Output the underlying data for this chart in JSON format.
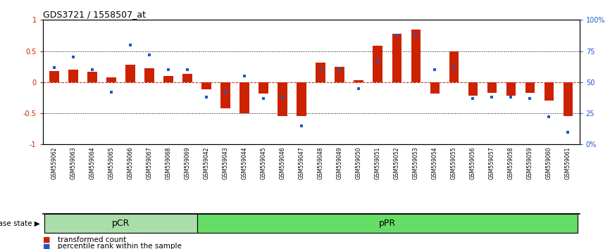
{
  "title": "GDS3721 / 1558507_at",
  "samples": [
    "GSM559062",
    "GSM559063",
    "GSM559064",
    "GSM559065",
    "GSM559066",
    "GSM559067",
    "GSM559068",
    "GSM559069",
    "GSM559042",
    "GSM559043",
    "GSM559044",
    "GSM559045",
    "GSM559046",
    "GSM559047",
    "GSM559048",
    "GSM559049",
    "GSM559050",
    "GSM559051",
    "GSM559052",
    "GSM559053",
    "GSM559054",
    "GSM559055",
    "GSM559056",
    "GSM559057",
    "GSM559058",
    "GSM559059",
    "GSM559060",
    "GSM559061"
  ],
  "red_values": [
    0.18,
    0.2,
    0.17,
    0.08,
    0.28,
    0.22,
    0.1,
    0.13,
    -0.12,
    -0.42,
    -0.5,
    -0.18,
    -0.55,
    -0.55,
    0.32,
    0.25,
    0.03,
    0.58,
    0.78,
    0.85,
    -0.18,
    0.5,
    -0.22,
    -0.17,
    -0.22,
    -0.17,
    -0.3,
    -0.55
  ],
  "blue_values_pct": [
    62,
    70,
    60,
    42,
    80,
    72,
    60,
    60,
    38,
    42,
    55,
    37,
    38,
    15,
    60,
    60,
    45,
    67,
    88,
    88,
    60,
    62,
    37,
    38,
    38,
    37,
    22,
    10
  ],
  "group_labels": [
    "pCR",
    "pPR"
  ],
  "group_counts": [
    8,
    20
  ],
  "group_colors": [
    "#aaddaa",
    "#66dd66"
  ],
  "bar_color": "#CC2200",
  "dot_color": "#2255CC",
  "ylim": [
    -1,
    1
  ],
  "y2lim": [
    0,
    100
  ],
  "yticks": [
    -1,
    -0.5,
    0,
    0.5,
    1
  ],
  "y2_ticks": [
    0,
    25,
    50,
    75,
    100
  ],
  "y2_labels": [
    "0%",
    "25",
    "50",
    "75",
    "100%"
  ],
  "background_color": "#ffffff",
  "legend_items": [
    "transformed count",
    "percentile rank within the sample"
  ],
  "disease_state_label": "disease state"
}
